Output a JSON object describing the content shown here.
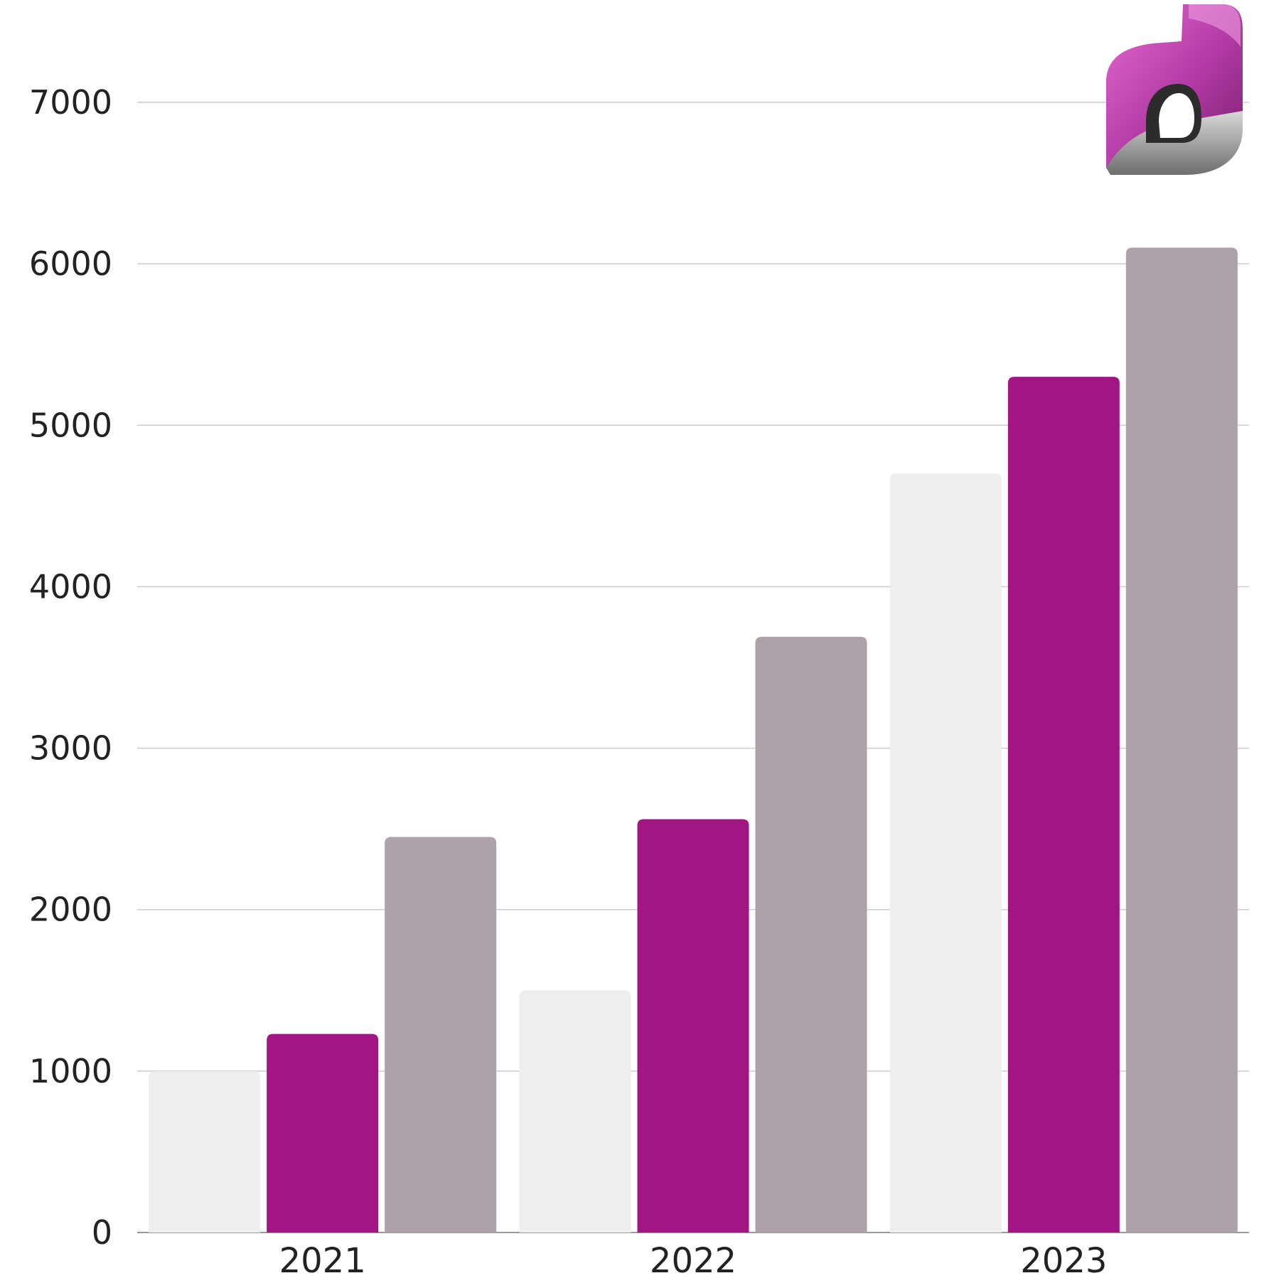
{
  "chart_data": {
    "type": "bar",
    "categories": [
      "2021",
      "2022",
      "2023"
    ],
    "series": [
      {
        "values": [
          1000,
          1500,
          4700
        ],
        "color": "#EEEEEE"
      },
      {
        "values": [
          1230,
          2560,
          5300
        ],
        "color": "#A21684"
      },
      {
        "values": [
          2450,
          3690,
          6100
        ],
        "color": "#ADA2AA"
      }
    ],
    "yticks": [
      "0",
      "1000",
      "2000",
      "3000",
      "4000",
      "5000",
      "6000",
      "7000"
    ],
    "ylim": [
      0,
      7000
    ],
    "grid": true,
    "gridline_color": "#CCCCCC",
    "logo": {
      "icon": "letter-d-logo-icon",
      "position": "top-right"
    }
  }
}
